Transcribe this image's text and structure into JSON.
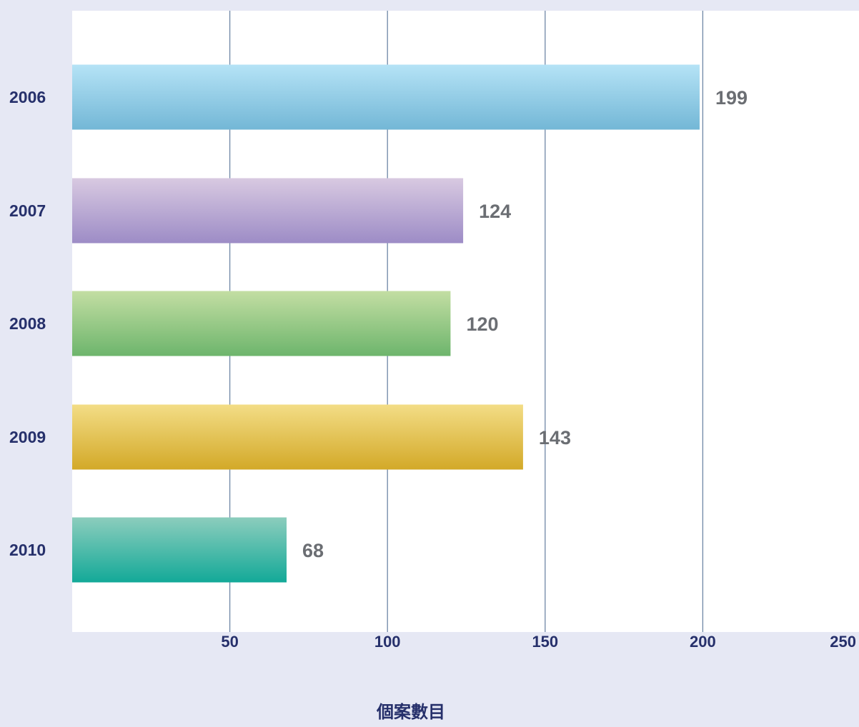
{
  "chart_data": {
    "type": "bar",
    "orientation": "horizontal",
    "title": "",
    "categories": [
      "2006",
      "2007",
      "2008",
      "2009",
      "2010"
    ],
    "values": [
      199,
      124,
      120,
      143,
      68
    ],
    "xlabel": "個案數目",
    "ylabel": "",
    "xlim": [
      0,
      250
    ],
    "xticks": [
      50,
      100,
      150,
      200,
      250
    ],
    "grid": "vertical",
    "legend": "none",
    "bar_colors": [
      {
        "top": "#b5e3f6",
        "bottom": "#73b7d6"
      },
      {
        "top": "#d8c9e1",
        "bottom": "#9d8cc6"
      },
      {
        "top": "#c3dea3",
        "bottom": "#6db56c"
      },
      {
        "top": "#f3dd86",
        "bottom": "#d3a928"
      },
      {
        "top": "#8ccdbd",
        "bottom": "#13a998"
      }
    ],
    "colors": {
      "background": "#e6e8f4",
      "plot_area": "#ffffff",
      "gridline": "#6f87a6",
      "category_text": "#26306b",
      "value_text": "#6b6e73"
    }
  }
}
